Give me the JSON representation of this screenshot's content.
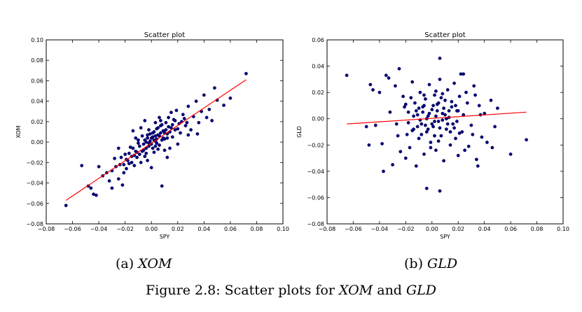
{
  "subcaptions": [
    {
      "prefix": "(a) ",
      "name": "XOM"
    },
    {
      "prefix": "(b) ",
      "name": "GLD"
    }
  ],
  "caption": {
    "text1": "Figure 2.8: Scatter plots for ",
    "name1": "XOM",
    "text2": " and ",
    "name2": "GLD"
  },
  "chart_data": [
    {
      "type": "scatter",
      "title": "Scatter plot",
      "xlabel": "SPY",
      "ylabel": "XOM",
      "xlim": [
        -0.08,
        0.1
      ],
      "ylim": [
        -0.08,
        0.1
      ],
      "xticks": [
        -0.08,
        -0.06,
        -0.04,
        -0.02,
        0.0,
        0.02,
        0.04,
        0.06,
        0.08,
        0.1
      ],
      "yticks": [
        -0.08,
        -0.06,
        -0.04,
        -0.02,
        0.0,
        0.02,
        0.04,
        0.06,
        0.08,
        0.1
      ],
      "xtick_labels": [
        "−0.08",
        "−0.06",
        "−0.04",
        "−0.02",
        "0.00",
        "0.02",
        "0.04",
        "0.06",
        "0.08",
        "0.10"
      ],
      "ytick_labels": [
        "−0.08",
        "−0.06",
        "−0.04",
        "−0.02",
        "0.00",
        "0.02",
        "0.04",
        "0.06",
        "0.08",
        "0.10"
      ],
      "grid": false,
      "point_color": "#00007f",
      "line_color": "#ff0000",
      "fit_line": {
        "x": [
          -0.065,
          0.072
        ],
        "y": [
          -0.057,
          0.061
        ]
      },
      "points": [
        [
          -0.065,
          -0.062
        ],
        [
          0.072,
          0.067
        ],
        [
          -0.053,
          -0.023
        ],
        [
          -0.048,
          -0.043
        ],
        [
          -0.046,
          -0.045
        ],
        [
          -0.044,
          -0.051
        ],
        [
          -0.042,
          -0.052
        ],
        [
          -0.04,
          -0.024
        ],
        [
          -0.037,
          -0.033
        ],
        [
          -0.034,
          -0.03
        ],
        [
          -0.032,
          -0.038
        ],
        [
          -0.03,
          -0.028
        ],
        [
          -0.028,
          -0.016
        ],
        [
          -0.027,
          -0.024
        ],
        [
          -0.025,
          -0.036
        ],
        [
          -0.024,
          -0.022
        ],
        [
          -0.022,
          -0.042
        ],
        [
          -0.021,
          -0.03
        ],
        [
          -0.02,
          -0.012
        ],
        [
          -0.019,
          -0.026
        ],
        [
          -0.018,
          -0.018
        ],
        [
          -0.017,
          -0.021
        ],
        [
          -0.016,
          -0.005
        ],
        [
          -0.015,
          -0.014
        ],
        [
          -0.014,
          0.011
        ],
        [
          -0.013,
          -0.023
        ],
        [
          -0.012,
          -0.009
        ],
        [
          -0.011,
          -0.015
        ],
        [
          -0.01,
          -0.001
        ],
        [
          -0.009,
          -0.012
        ],
        [
          -0.008,
          -0.02
        ],
        [
          -0.007,
          0.006
        ],
        [
          -0.006,
          -0.008
        ],
        [
          -0.005,
          0.002
        ],
        [
          -0.004,
          -0.011
        ],
        [
          -0.003,
          0.004
        ],
        [
          -0.002,
          -0.004
        ],
        [
          -0.001,
          0.008
        ],
        [
          0.0,
          -0.002
        ],
        [
          0.001,
          0.005
        ],
        [
          0.002,
          0.01
        ],
        [
          0.003,
          0.001
        ],
        [
          0.004,
          0.013
        ],
        [
          0.005,
          0.007
        ],
        [
          0.006,
          -0.003
        ],
        [
          0.007,
          0.016
        ],
        [
          0.008,
          -0.043
        ],
        [
          0.009,
          0.011
        ],
        [
          0.01,
          0.003
        ],
        [
          0.011,
          0.019
        ],
        [
          0.012,
          0.008
        ],
        [
          0.013,
          0.024
        ],
        [
          0.014,
          -0.006
        ],
        [
          0.015,
          0.014
        ],
        [
          0.016,
          0.005
        ],
        [
          0.017,
          0.022
        ],
        [
          0.018,
          0.012
        ],
        [
          0.019,
          0.031
        ],
        [
          0.02,
          -0.002
        ],
        [
          0.021,
          0.018
        ],
        [
          0.022,
          0.009
        ],
        [
          0.024,
          0.027
        ],
        [
          0.026,
          0.016
        ],
        [
          0.028,
          0.035
        ],
        [
          0.03,
          0.012
        ],
        [
          0.032,
          0.025
        ],
        [
          0.034,
          0.04
        ],
        [
          0.036,
          0.019
        ],
        [
          0.038,
          0.03
        ],
        [
          0.04,
          0.046
        ],
        [
          0.042,
          0.024
        ],
        [
          0.044,
          0.032
        ],
        [
          0.046,
          0.021
        ],
        [
          0.048,
          0.053
        ],
        [
          0.05,
          0.041
        ],
        [
          0.055,
          0.036
        ],
        [
          0.06,
          0.043
        ],
        [
          0.028,
          0.007
        ],
        [
          0.035,
          0.008
        ],
        [
          -0.03,
          -0.045
        ],
        [
          -0.025,
          -0.006
        ],
        [
          -0.005,
          0.021
        ],
        [
          0.0,
          -0.025
        ],
        [
          0.003,
          0.019
        ],
        [
          -0.008,
          0.014
        ],
        [
          0.012,
          -0.015
        ],
        [
          -0.003,
          -0.018
        ],
        [
          0.006,
          0.024
        ],
        [
          0.015,
          0.029
        ],
        [
          -0.012,
          0.004
        ],
        [
          0.01,
          -0.008
        ],
        [
          0.008,
          0.017
        ],
        [
          -0.002,
          0.012
        ],
        [
          0.002,
          -0.01
        ],
        [
          0.004,
          0.003
        ],
        [
          -0.006,
          -0.002
        ],
        [
          0.007,
          0.009
        ],
        [
          0.001,
          -0.006
        ],
        [
          -0.001,
          0.001
        ],
        [
          0.005,
          0.014
        ],
        [
          0.003,
          0.006
        ],
        [
          -0.004,
          -0.006
        ],
        [
          0.009,
          0.004
        ],
        [
          0.011,
          0.012
        ],
        [
          -0.009,
          -0.004
        ],
        [
          0.013,
          0.015
        ],
        [
          -0.011,
          -0.01
        ],
        [
          0.014,
          0.01
        ],
        [
          -0.013,
          -0.013
        ],
        [
          0.016,
          0.017
        ],
        [
          -0.015,
          -0.02
        ],
        [
          0.018,
          0.021
        ],
        [
          -0.017,
          -0.011
        ],
        [
          0.02,
          0.013
        ],
        [
          -0.019,
          -0.017
        ],
        [
          0.023,
          0.02
        ],
        [
          -0.021,
          -0.022
        ],
        [
          0.025,
          0.023
        ],
        [
          -0.023,
          -0.015
        ],
        [
          0.027,
          0.019
        ],
        [
          0.002,
          0.002
        ],
        [
          -0.002,
          -0.001
        ],
        [
          0.0,
          0.004
        ],
        [
          0.004,
          -0.001
        ],
        [
          -0.004,
          0.0
        ],
        [
          0.006,
          0.006
        ],
        [
          0.001,
          0.009
        ],
        [
          0.003,
          -0.004
        ],
        [
          -0.003,
          0.007
        ],
        [
          0.008,
          0.002
        ],
        [
          0.01,
          0.009
        ],
        [
          -0.007,
          -0.009
        ],
        [
          0.012,
          0.004
        ],
        [
          -0.01,
          0.002
        ],
        [
          0.005,
          -0.007
        ],
        [
          -0.005,
          -0.014
        ],
        [
          0.007,
          0.021
        ],
        [
          -0.014,
          -0.006
        ]
      ]
    },
    {
      "type": "scatter",
      "title": "Scatter plot",
      "xlabel": "SPY",
      "ylabel": "GLD",
      "xlim": [
        -0.08,
        0.1
      ],
      "ylim": [
        -0.08,
        0.06
      ],
      "xticks": [
        -0.08,
        -0.06,
        -0.04,
        -0.02,
        0.0,
        0.02,
        0.04,
        0.06,
        0.08,
        0.1
      ],
      "yticks": [
        -0.08,
        -0.06,
        -0.04,
        -0.02,
        0.0,
        0.02,
        0.04,
        0.06
      ],
      "xtick_labels": [
        "−0.08",
        "−0.06",
        "−0.04",
        "−0.02",
        "0.00",
        "0.02",
        "0.04",
        "0.06",
        "0.08",
        "0.10"
      ],
      "ytick_labels": [
        "−0.08",
        "−0.06",
        "−0.04",
        "−0.02",
        "0.00",
        "0.02",
        "0.04",
        "0.06"
      ],
      "grid": false,
      "point_color": "#00007f",
      "line_color": "#ff0000",
      "fit_line": {
        "x": [
          -0.065,
          0.072
        ],
        "y": [
          -0.004,
          0.005
        ]
      },
      "points": [
        [
          -0.065,
          0.033
        ],
        [
          0.072,
          -0.016
        ],
        [
          0.06,
          -0.027
        ],
        [
          0.006,
          0.046
        ],
        [
          0.006,
          -0.055
        ],
        [
          -0.004,
          -0.053
        ],
        [
          -0.045,
          0.022
        ],
        [
          -0.04,
          0.02
        ],
        [
          -0.043,
          -0.005
        ],
        [
          -0.035,
          0.033
        ],
        [
          -0.033,
          0.031
        ],
        [
          -0.038,
          -0.019
        ],
        [
          -0.03,
          -0.035
        ],
        [
          -0.028,
          0.025
        ],
        [
          -0.025,
          0.038
        ],
        [
          -0.026,
          -0.013
        ],
        [
          -0.022,
          0.017
        ],
        [
          -0.02,
          -0.03
        ],
        [
          -0.018,
          0.005
        ],
        [
          -0.017,
          -0.022
        ],
        [
          -0.015,
          0.028
        ],
        [
          -0.014,
          -0.008
        ],
        [
          -0.013,
          0.012
        ],
        [
          -0.012,
          -0.036
        ],
        [
          -0.011,
          0.003
        ],
        [
          -0.01,
          -0.015
        ],
        [
          -0.009,
          0.02
        ],
        [
          -0.008,
          -0.004
        ],
        [
          -0.007,
          0.009
        ],
        [
          -0.006,
          -0.027
        ],
        [
          -0.005,
          0.015
        ],
        [
          -0.004,
          -0.01
        ],
        [
          -0.003,
          0.002
        ],
        [
          -0.002,
          0.026
        ],
        [
          -0.001,
          -0.018
        ],
        [
          0.0,
          0.007
        ],
        [
          0.001,
          -0.006
        ],
        [
          0.002,
          0.018
        ],
        [
          0.003,
          -0.024
        ],
        [
          0.004,
          0.011
        ],
        [
          0.005,
          -0.002
        ],
        [
          0.006,
          0.03
        ],
        [
          0.007,
          -0.013
        ],
        [
          0.008,
          0.004
        ],
        [
          0.009,
          -0.032
        ],
        [
          0.01,
          0.014
        ],
        [
          0.011,
          -0.008
        ],
        [
          0.012,
          0.022
        ],
        [
          0.013,
          0.001
        ],
        [
          0.014,
          -0.02
        ],
        [
          0.015,
          0.009
        ],
        [
          0.016,
          -0.004
        ],
        [
          0.017,
          0.027
        ],
        [
          0.018,
          -0.015
        ],
        [
          0.019,
          0.006
        ],
        [
          0.02,
          -0.028
        ],
        [
          0.021,
          0.017
        ],
        [
          0.022,
          0.034
        ],
        [
          0.023,
          -0.01
        ],
        [
          0.024,
          0.003
        ],
        [
          0.026,
          0.02
        ],
        [
          0.028,
          -0.021
        ],
        [
          0.03,
          -0.005
        ],
        [
          0.032,
          0.025
        ],
        [
          0.034,
          -0.031
        ],
        [
          0.036,
          0.01
        ],
        [
          0.038,
          -0.014
        ],
        [
          0.04,
          0.004
        ],
        [
          0.042,
          -0.018
        ],
        [
          0.045,
          0.014
        ],
        [
          0.048,
          -0.006
        ],
        [
          0.05,
          0.008
        ],
        [
          0.046,
          -0.022
        ],
        [
          0.024,
          0.034
        ],
        [
          -0.047,
          0.026
        ],
        [
          -0.05,
          -0.006
        ],
        [
          -0.048,
          -0.02
        ],
        [
          -0.037,
          -0.04
        ],
        [
          -0.032,
          0.005
        ],
        [
          -0.027,
          -0.004
        ],
        [
          -0.024,
          -0.025
        ],
        [
          -0.021,
          0.009
        ],
        [
          -0.019,
          -0.012
        ],
        [
          -0.016,
          0.016
        ],
        [
          -0.002,
          0.004
        ],
        [
          0.002,
          -0.002
        ],
        [
          0.0,
          -0.004
        ],
        [
          0.004,
          0.006
        ],
        [
          -0.004,
          0.0
        ],
        [
          0.006,
          -0.007
        ],
        [
          0.001,
          0.01
        ],
        [
          0.003,
          0.002
        ],
        [
          -0.003,
          -0.008
        ],
        [
          0.008,
          -0.001
        ],
        [
          0.01,
          0.003
        ],
        [
          -0.007,
          0.005
        ],
        [
          0.012,
          -0.004
        ],
        [
          -0.01,
          0.008
        ],
        [
          0.005,
          0.012
        ],
        [
          -0.005,
          -0.005
        ],
        [
          0.007,
          0.016
        ],
        [
          -0.008,
          -0.012
        ],
        [
          0.009,
          0.008
        ],
        [
          -0.006,
          0.01
        ],
        [
          0.011,
          0.0
        ],
        [
          -0.009,
          -0.001
        ],
        [
          0.013,
          0.006
        ],
        [
          -0.011,
          -0.006
        ],
        [
          0.014,
          -0.01
        ],
        [
          -0.012,
          0.006
        ],
        [
          0.015,
          0.013
        ],
        [
          -0.014,
          0.002
        ],
        [
          0.017,
          -0.007
        ],
        [
          -0.015,
          -0.009
        ],
        [
          0.018,
          0.01
        ],
        [
          0.019,
          -0.002
        ],
        [
          0.02,
          0.006
        ],
        [
          -0.018,
          -0.003
        ],
        [
          0.021,
          -0.011
        ],
        [
          -0.02,
          0.011
        ],
        [
          0.003,
          0.021
        ],
        [
          -0.001,
          -0.022
        ],
        [
          0.005,
          -0.017
        ],
        [
          0.008,
          0.019
        ],
        [
          -0.006,
          0.018
        ],
        [
          0.002,
          -0.013
        ],
        [
          0.025,
          -0.024
        ],
        [
          0.027,
          0.012
        ],
        [
          0.031,
          -0.012
        ],
        [
          0.033,
          0.018
        ],
        [
          0.035,
          -0.036
        ],
        [
          0.037,
          0.003
        ]
      ]
    }
  ]
}
